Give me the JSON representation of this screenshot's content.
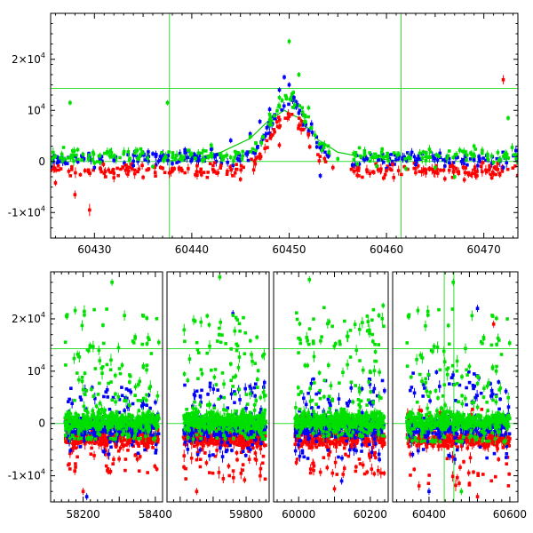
{
  "chart_data": [
    {
      "type": "scatter",
      "panel": "top",
      "title": "",
      "xlabel": "",
      "ylabel": "",
      "xlim": [
        60425.5,
        60473.5
      ],
      "ylim": [
        -15000,
        29000
      ],
      "x_ticks": [
        60430,
        60440,
        60450,
        60460,
        60470
      ],
      "y_ticks": [
        {
          "value": 20000,
          "mantissa": "2×10",
          "exp": "4"
        },
        {
          "value": 10000,
          "mantissa": "10",
          "exp": "4"
        },
        {
          "value": 0,
          "mantissa": "0",
          "exp": ""
        },
        {
          "value": -10000,
          "mantissa": "-1×10",
          "exp": "4"
        }
      ],
      "reference_lines": {
        "horizontal": [
          14300,
          0
        ],
        "vertical": [
          60437.7,
          60461.5
        ]
      },
      "model_curve": {
        "color": "#00cc00",
        "x": [
          60437,
          60440,
          60443,
          60446,
          60448,
          60449.5,
          60451,
          60453,
          60455,
          60458,
          60461
        ],
        "y": [
          0,
          600,
          1800,
          4500,
          8200,
          10000,
          8500,
          4200,
          1800,
          700,
          200
        ]
      },
      "series": [
        {
          "color": "#0000ff",
          "x": [
            60427,
            60430,
            60432,
            60434,
            60436,
            60438,
            60440,
            60442,
            60444,
            60446,
            60447,
            60448,
            60449,
            60449.5,
            60450,
            60450.5,
            60451,
            60452,
            60453.2,
            60454,
            60456.5,
            60458,
            60460,
            60463,
            60466,
            60469,
            60472
          ],
          "y": [
            -300,
            -1200,
            200,
            -800,
            1500,
            -400,
            300,
            2400,
            4100,
            5400,
            7800,
            10200,
            14000,
            16500,
            15000,
            12500,
            9500,
            6000,
            -2800,
            1000,
            -700,
            500,
            -1400,
            -600,
            -900,
            300,
            -1200
          ]
        },
        {
          "color": "#ff0000",
          "x": [
            60426,
            60428,
            60429.5,
            60432,
            60435,
            60438,
            60441,
            60443,
            60445,
            60447,
            60449,
            60450,
            60451,
            60452,
            60454.5,
            60457,
            60460,
            60463,
            60466,
            60468,
            60471,
            60472
          ],
          "y": [
            -4200,
            -6500,
            -9500,
            -2300,
            -3100,
            -1900,
            -2600,
            -800,
            -3500,
            1400,
            3200,
            8800,
            7000,
            5200,
            -1200,
            -2700,
            -1800,
            -2200,
            -3400,
            -3600,
            -2400,
            16000
          ],
          "err": [
            600,
            800,
            1200,
            500,
            500,
            500,
            500,
            400,
            500,
            500,
            600,
            800,
            700,
            600,
            600,
            600,
            500,
            600,
            600,
            600,
            600,
            900
          ]
        },
        {
          "color": "#00e000",
          "x": [
            60426,
            60427.5,
            60430,
            60433,
            60436,
            60437.5,
            60440,
            60442,
            60444,
            60446,
            60448,
            60449,
            60450,
            60451,
            60452,
            60455,
            60457,
            60459,
            60462,
            60465,
            60467,
            60469,
            60471,
            60472.5
          ],
          "y": [
            1000,
            11500,
            -300,
            1500,
            -1000,
            11500,
            1500,
            3200,
            800,
            4800,
            9200,
            12500,
            23500,
            17000,
            10500,
            500,
            -500,
            -900,
            -1400,
            -1200,
            -3000,
            3000,
            -200,
            8500
          ]
        }
      ]
    },
    {
      "type": "scatter",
      "panel": "bottom",
      "title": "",
      "xlabel": "",
      "ylabel": "",
      "broken_x_axis": true,
      "segments": [
        {
          "xlim": [
            58110,
            58420
          ],
          "ticks": [
            58200,
            58400
          ]
        },
        {
          "xlim": [
            59560,
            59870
          ],
          "ticks": [
            59800
          ]
        },
        {
          "xlim": [
            59930,
            60250
          ],
          "ticks": [
            60000,
            60200
          ]
        },
        {
          "xlim": [
            60310,
            60620
          ],
          "ticks": [
            60400,
            60600
          ]
        }
      ],
      "ylim": [
        -15000,
        29000
      ],
      "y_ticks": [
        {
          "value": 20000,
          "mantissa": "2×10",
          "exp": "4"
        },
        {
          "value": 10000,
          "mantissa": "10",
          "exp": "4"
        },
        {
          "value": 0,
          "mantissa": "0",
          "exp": ""
        },
        {
          "value": -10000,
          "mantissa": "-1×10",
          "exp": "4"
        }
      ],
      "reference_lines": {
        "horizontal": [
          14300,
          0
        ],
        "vertical": [
          60437.7,
          60461.5
        ]
      },
      "series": [
        {
          "color": "#0000ff",
          "ranges": [
            {
              "x": [
                58150,
                58410
              ],
              "ymin": -6000,
              "ymax": 7000
            },
            {
              "x": [
                59610,
                59860
              ],
              "ymin": -6500,
              "ymax": 8000
            },
            {
              "x": [
                59990,
                60240
              ],
              "ymin": -7000,
              "ymax": 9000
            },
            {
              "x": [
                60345,
                60600
              ],
              "ymin": -7000,
              "ymax": 10000
            }
          ],
          "outliers": [
            {
              "x": 58210,
              "y": -14000
            },
            {
              "x": 59760,
              "y": 21000
            },
            {
              "x": 60120,
              "y": -11000
            },
            {
              "x": 60520,
              "y": 22000
            },
            {
              "x": 60400,
              "y": -13000
            }
          ]
        },
        {
          "color": "#ff0000",
          "ranges": [
            {
              "x": [
                58150,
                58410
              ],
              "ymin": -9500,
              "ymax": 1500
            },
            {
              "x": [
                59610,
                59860
              ],
              "ymin": -11000,
              "ymax": 1500
            },
            {
              "x": [
                59990,
                60240
              ],
              "ymin": -10000,
              "ymax": 1500
            },
            {
              "x": [
                60345,
                60600
              ],
              "ymin": -12000,
              "ymax": 3000
            }
          ],
          "outliers": [
            {
              "x": 58200,
              "y": -13000
            },
            {
              "x": 59650,
              "y": -13000
            },
            {
              "x": 60100,
              "y": -12500
            },
            {
              "x": 60560,
              "y": 19000
            },
            {
              "x": 60520,
              "y": -14000
            }
          ]
        },
        {
          "color": "#00e000",
          "ranges": [
            {
              "x": [
                58150,
                58410
              ],
              "ymin": -3000,
              "ymax": 22000
            },
            {
              "x": [
                59610,
                59860
              ],
              "ymin": -3000,
              "ymax": 21000
            },
            {
              "x": [
                59990,
                60240
              ],
              "ymin": -2500,
              "ymax": 23000
            },
            {
              "x": [
                60345,
                60600
              ],
              "ymin": -3500,
              "ymax": 22000
            }
          ],
          "outliers": [
            {
              "x": 58280,
              "y": 27000
            },
            {
              "x": 59720,
              "y": 28000
            },
            {
              "x": 60030,
              "y": 27500
            },
            {
              "x": 60460,
              "y": 27000
            },
            {
              "x": 60480,
              "y": -13000
            }
          ]
        }
      ]
    }
  ]
}
